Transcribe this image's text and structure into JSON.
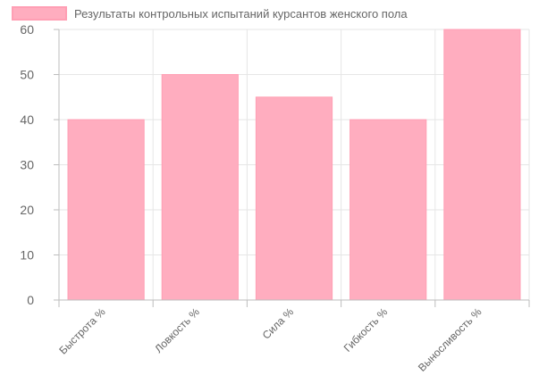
{
  "chart_data": {
    "type": "bar",
    "title": "",
    "xlabel": "",
    "ylabel": "",
    "categories": [
      "Быстрота %",
      "Ловкость %",
      "Сила %",
      "Гибкость %",
      "Выносливость %"
    ],
    "series": [
      {
        "name": "Результаты контрольных испытаний курсантов женского пола",
        "values": [
          40,
          50,
          45,
          40,
          60
        ]
      }
    ],
    "ylim": [
      0,
      60
    ],
    "yticks": [
      0,
      10,
      20,
      30,
      40,
      50,
      60
    ],
    "grid": true,
    "legend_position": "top",
    "colors": {
      "bar_fill": "#ffadbf",
      "bar_stroke": "#ff9fb4"
    }
  }
}
